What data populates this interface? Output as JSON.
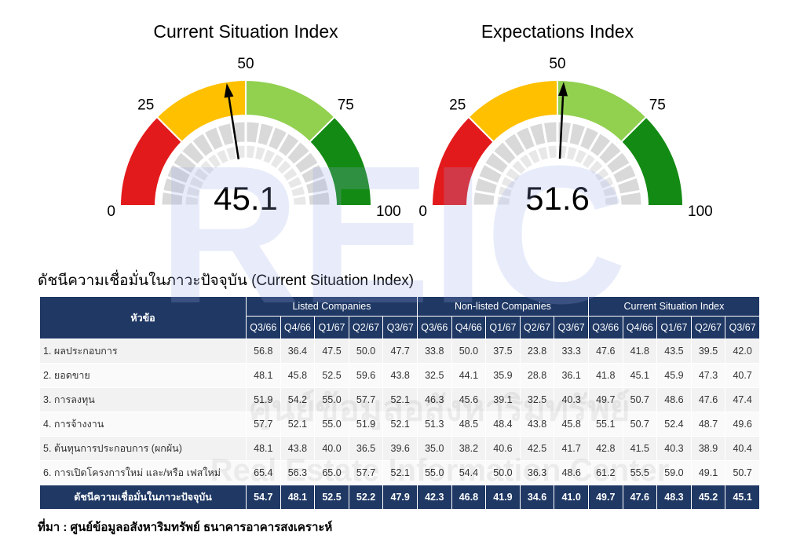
{
  "chart_data": [
    {
      "type": "gauge",
      "title": "Current Situation Index",
      "value": 45.1,
      "ylim": [
        0,
        100
      ],
      "yticks": [
        0,
        25,
        50,
        75,
        100
      ],
      "band_colors": [
        "#e31a1c",
        "#ffc000",
        "#92d050",
        "#138a13"
      ]
    },
    {
      "type": "gauge",
      "title": "Expectations Index",
      "value": 51.6,
      "ylim": [
        0,
        100
      ],
      "yticks": [
        0,
        25,
        50,
        75,
        100
      ],
      "band_colors": [
        "#e31a1c",
        "#ffc000",
        "#92d050",
        "#138a13"
      ]
    }
  ],
  "watermark": {
    "logo": "REIC",
    "thai": "ศูนย์ข้อมูลอสังหาริมทรัพย์",
    "english": "Real Estate Information Center"
  },
  "table": {
    "title": "ดัชนีความเชื่อมั่นในภาวะปัจจุบัน (Current Situation Index)",
    "header": "หัวข้อ",
    "groups": [
      {
        "name": "Listed Companies",
        "periods": [
          "Q3/66",
          "Q4/66",
          "Q1/67",
          "Q2/67",
          "Q3/67"
        ]
      },
      {
        "name": "Non-listed Companies",
        "periods": [
          "Q3/66",
          "Q4/66",
          "Q1/67",
          "Q2/67",
          "Q3/67"
        ]
      },
      {
        "name": "Current Situation Index",
        "periods": [
          "Q3/66",
          "Q4/66",
          "Q1/67",
          "Q2/67",
          "Q3/67"
        ]
      }
    ],
    "rows": [
      {
        "label": "1. ผลประกอบการ",
        "values": [
          "56.8",
          "36.4",
          "47.5",
          "50.0",
          "47.7",
          "33.8",
          "50.0",
          "37.5",
          "23.8",
          "33.3",
          "47.6",
          "41.8",
          "43.5",
          "39.5",
          "42.0"
        ]
      },
      {
        "label": "2. ยอดขาย",
        "values": [
          "48.1",
          "45.8",
          "52.5",
          "59.6",
          "43.8",
          "32.5",
          "44.1",
          "35.9",
          "28.8",
          "36.1",
          "41.8",
          "45.1",
          "45.9",
          "47.3",
          "40.7"
        ]
      },
      {
        "label": "3. การลงทุน",
        "values": [
          "51.9",
          "54.2",
          "55.0",
          "57.7",
          "52.1",
          "46.3",
          "45.6",
          "39.1",
          "32.5",
          "40.3",
          "49.7",
          "50.7",
          "48.6",
          "47.6",
          "47.4"
        ]
      },
      {
        "label": "4. การจ้างงาน",
        "values": [
          "57.7",
          "52.1",
          "55.0",
          "51.9",
          "52.1",
          "51.3",
          "48.5",
          "48.4",
          "43.8",
          "45.8",
          "55.1",
          "50.7",
          "52.4",
          "48.7",
          "49.6"
        ]
      },
      {
        "label": "5. ต้นทุนการประกอบการ (ผกผัน)",
        "values": [
          "48.1",
          "43.8",
          "40.0",
          "36.5",
          "39.6",
          "35.0",
          "38.2",
          "40.6",
          "42.5",
          "41.7",
          "42.8",
          "41.5",
          "40.3",
          "38.9",
          "40.4"
        ]
      },
      {
        "label": "6. การเปิดโครงการใหม่ และ/หรือ เฟสใหม่",
        "values": [
          "65.4",
          "56.3",
          "65.0",
          "57.7",
          "52.1",
          "55.0",
          "54.4",
          "50.0",
          "36.3",
          "48.6",
          "61.2",
          "55.5",
          "59.0",
          "49.1",
          "50.7"
        ]
      }
    ],
    "total": {
      "label": "ดัชนีความเชื่อมั่นในภาวะปัจจุบัน",
      "values": [
        "54.7",
        "48.1",
        "52.5",
        "52.2",
        "47.9",
        "42.3",
        "46.8",
        "41.9",
        "34.6",
        "41.0",
        "49.7",
        "47.6",
        "48.3",
        "45.2",
        "45.1"
      ]
    }
  },
  "source": "ที่มา : ศูนย์ข้อมูลอสังหาริมทรัพย์ ธนาคารอาคารสงเคราะห์"
}
